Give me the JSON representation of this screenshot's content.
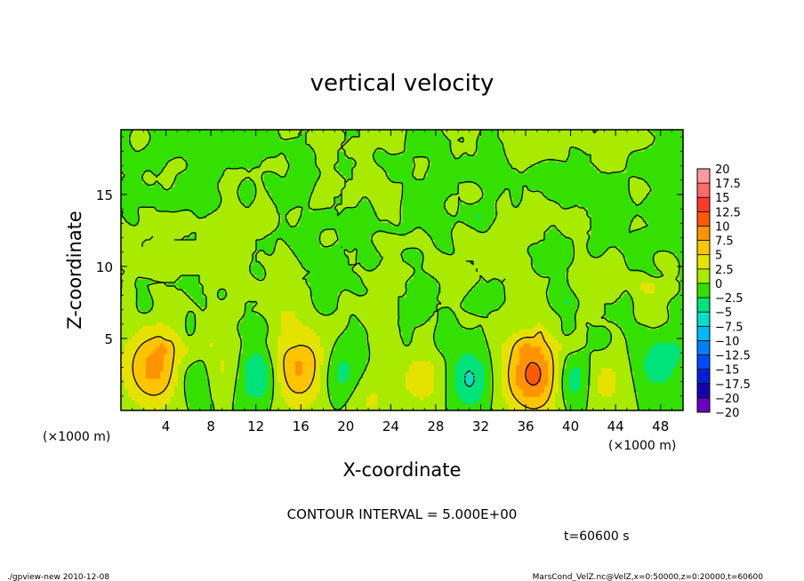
{
  "chart_data": {
    "type": "heatmap",
    "title": "vertical velocity",
    "xlabel": "X-coordinate",
    "ylabel": "Z-coordinate",
    "x_unit_left": "(×1000 m)",
    "x_unit_right": "(×1000 m)",
    "xlim": [
      0,
      50
    ],
    "ylim": [
      0,
      19.5
    ],
    "x_ticks": [
      4,
      8,
      12,
      16,
      20,
      24,
      28,
      32,
      36,
      40,
      44,
      48
    ],
    "y_ticks": [
      5,
      10,
      15
    ],
    "colorbar": {
      "levels": [
        "20",
        "17.5",
        "15",
        "12.5",
        "10",
        "7.5",
        "5",
        "2.5",
        "0",
        "−2.5",
        "−5",
        "−7.5",
        "−10",
        "−12.5",
        "−15",
        "−17.5",
        "−20"
      ],
      "colors": [
        "#ff9a9a",
        "#ff6a6a",
        "#ff3a2a",
        "#ff5a00",
        "#ff9400",
        "#ffc400",
        "#e6e200",
        "#a8ea00",
        "#33e000",
        "#00e27a",
        "#00e0c8",
        "#00b8ff",
        "#0080ff",
        "#0048ff",
        "#0020d8",
        "#1800b0",
        "#6a00c0"
      ]
    },
    "contour_interval": "CONTOUR INTERVAL = 5.000E+00",
    "features": [
      {
        "kind": "updraft",
        "x": 3.0,
        "z": 3.0,
        "peak": 8.5
      },
      {
        "kind": "updraft",
        "x": 15.8,
        "z": 3.0,
        "peak": 8.0
      },
      {
        "kind": "updraft",
        "x": 36.8,
        "z": 2.5,
        "peak": 11.0
      },
      {
        "kind": "updraft",
        "x": 9.0,
        "z": 3.0,
        "peak": 3.5
      },
      {
        "kind": "updraft",
        "x": 26.8,
        "z": 2.2,
        "peak": 4.0
      },
      {
        "kind": "updraft",
        "x": 42.7,
        "z": 2.0,
        "peak": 4.0
      },
      {
        "kind": "updraft",
        "x": 22.0,
        "z": 0.8,
        "peak": 3.0
      },
      {
        "kind": "downdraft",
        "x": 6.5,
        "z": 2.5,
        "peak": -4.0
      },
      {
        "kind": "downdraft",
        "x": 12.2,
        "z": 2.5,
        "peak": -6.5
      },
      {
        "kind": "downdraft",
        "x": 19.5,
        "z": 2.5,
        "peak": -4.5
      },
      {
        "kind": "downdraft",
        "x": 31.0,
        "z": 2.2,
        "peak": -5.5
      },
      {
        "kind": "downdraft",
        "x": 40.2,
        "z": 2.2,
        "peak": -6.5
      },
      {
        "kind": "downdraft",
        "x": 47.8,
        "z": 3.2,
        "peak": -4.0
      }
    ]
  },
  "annotations": {
    "time": "t=60600 s",
    "footer_left": "./gpview-new   2010-12-08",
    "footer_right": "MarsCond_VelZ.nc@VelZ,x=0:50000,z=0:20000,t=60600"
  }
}
